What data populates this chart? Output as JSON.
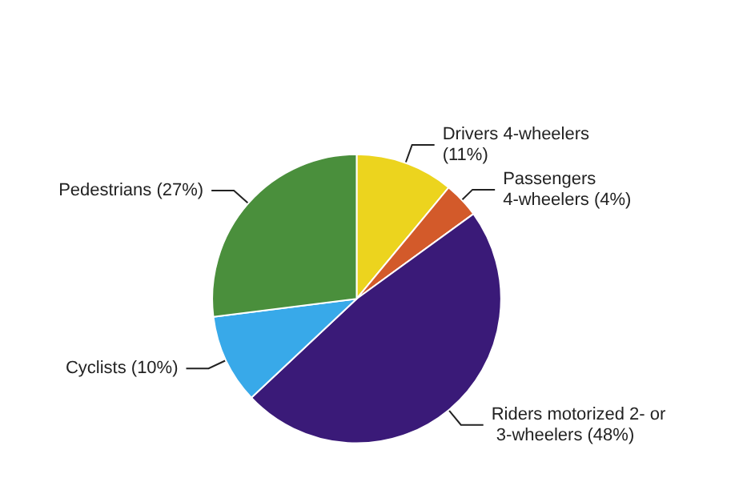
{
  "chart_data": {
    "type": "pie",
    "categories": [
      "Drivers 4-wheelers (11%)",
      "Passengers 4-wheelers (4%)",
      "Riders motorized 2- or 3-wheelers (48%)",
      "Cyclists (10%)",
      "Pedestrians (27%)"
    ],
    "values": [
      11,
      4,
      48,
      10,
      27
    ],
    "colors": [
      "#ecd41e",
      "#d35a2a",
      "#3a1a78",
      "#38a9e9",
      "#4a8f3c"
    ]
  }
}
